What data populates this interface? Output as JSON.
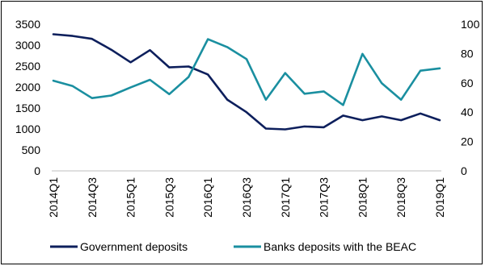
{
  "chart_data": {
    "type": "line",
    "title": "",
    "x": [
      "2014Q1",
      "2014Q2",
      "2014Q3",
      "2014Q4",
      "2015Q1",
      "2015Q2",
      "2015Q3",
      "2015Q4",
      "2016Q1",
      "2016Q2",
      "2016Q3",
      "2016Q4",
      "2017Q1",
      "2017Q2",
      "2017Q3",
      "2017Q4",
      "2018Q1",
      "2018Q2",
      "2018Q3",
      "2018Q4",
      "2019Q1"
    ],
    "x_tick_labels": [
      "2014Q1",
      "2014Q3",
      "2015Q1",
      "2015Q3",
      "2016Q1",
      "2016Q3",
      "2017Q1",
      "2017Q3",
      "2018Q1",
      "2018Q3",
      "2019Q1"
    ],
    "y_left": {
      "range": [
        0,
        3500
      ],
      "ticks": [
        "0",
        "500",
        "1000",
        "1500",
        "2000",
        "2500",
        "3000",
        "3500"
      ]
    },
    "y_right": {
      "range": [
        0,
        100
      ],
      "ticks": [
        "0",
        "20",
        "40",
        "60",
        "80",
        "100"
      ]
    },
    "grid": false,
    "legend_position": "bottom",
    "series": [
      {
        "name": "Government deposits",
        "axis": "left",
        "color": "#0d1f5c",
        "values": [
          3260,
          3220,
          3150,
          2890,
          2590,
          2880,
          2470,
          2490,
          2300,
          1700,
          1400,
          1010,
          990,
          1060,
          1040,
          1320,
          1210,
          1300,
          1210,
          1370,
          1210
        ]
      },
      {
        "name": "Banks deposits with the BEAC",
        "axis": "right",
        "color": "#1a8fa0",
        "values": [
          61.5,
          57.8,
          49.6,
          51.4,
          56.9,
          62.1,
          52.3,
          64.0,
          89.8,
          84.4,
          76.2,
          48.5,
          66.7,
          52.6,
          54.2,
          44.9,
          79.8,
          59.7,
          48.5,
          68.3,
          69.9
        ]
      }
    ]
  }
}
